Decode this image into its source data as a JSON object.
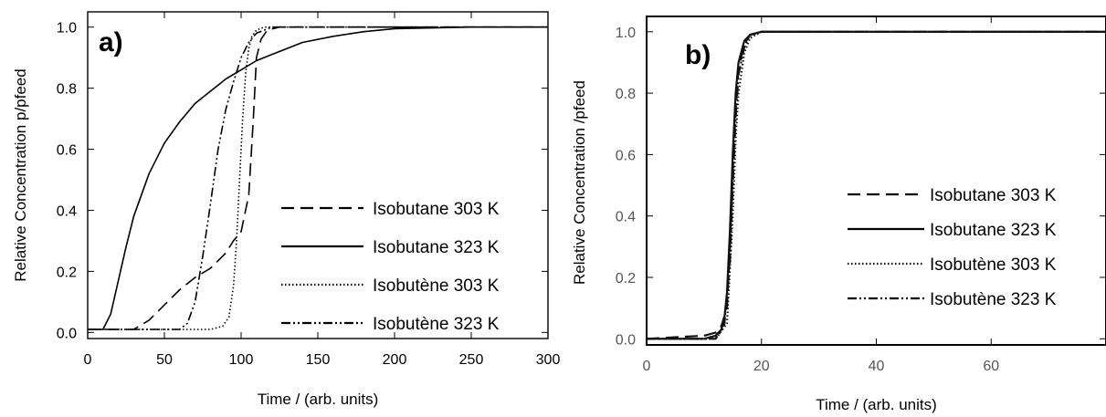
{
  "chart_data": [
    {
      "type": "line",
      "panel_label": "a)",
      "xlabel": "Time / (arb. units)",
      "ylabel": "Relative Concentration p/pfeed",
      "xlim": [
        0,
        300
      ],
      "ylim": [
        -0.02,
        1.05
      ],
      "x_ticks": [
        "0",
        "50",
        "100",
        "150",
        "200",
        "250",
        "300"
      ],
      "y_ticks": [
        "0.0",
        "0.2",
        "0.4",
        "0.6",
        "0.8",
        "1.0"
      ],
      "legend_position": "lower-right",
      "series": [
        {
          "name": "Isobutane 303 K",
          "style": "dashed",
          "x": [
            0,
            20,
            30,
            40,
            50,
            60,
            70,
            80,
            90,
            95,
            100,
            105,
            108,
            110,
            113,
            117,
            125,
            300
          ],
          "y": [
            0.01,
            0.01,
            0.01,
            0.04,
            0.09,
            0.14,
            0.18,
            0.21,
            0.26,
            0.3,
            0.33,
            0.45,
            0.7,
            0.9,
            0.96,
            0.99,
            1.0,
            1.0
          ]
        },
        {
          "name": "Isobutane 323 K",
          "style": "solid",
          "x": [
            0,
            10,
            15,
            20,
            25,
            30,
            40,
            50,
            60,
            70,
            80,
            90,
            100,
            110,
            120,
            140,
            160,
            180,
            200,
            250,
            300
          ],
          "y": [
            0.01,
            0.01,
            0.06,
            0.17,
            0.28,
            0.38,
            0.52,
            0.62,
            0.69,
            0.75,
            0.79,
            0.83,
            0.86,
            0.89,
            0.91,
            0.95,
            0.97,
            0.985,
            0.995,
            1.0,
            1.0
          ]
        },
        {
          "name": "Isobutène 303 K",
          "style": "dotted",
          "x": [
            0,
            80,
            88,
            92,
            95,
            97,
            99,
            101,
            103,
            105,
            107,
            110,
            115,
            300
          ],
          "y": [
            0.01,
            0.01,
            0.02,
            0.05,
            0.15,
            0.3,
            0.5,
            0.7,
            0.85,
            0.93,
            0.97,
            0.99,
            1.0,
            1.0
          ]
        },
        {
          "name": "Isobutène 323 K",
          "style": "dashdot",
          "x": [
            0,
            60,
            65,
            70,
            75,
            80,
            85,
            90,
            95,
            100,
            105,
            110,
            115,
            120,
            300
          ],
          "y": [
            0.01,
            0.01,
            0.03,
            0.1,
            0.25,
            0.42,
            0.6,
            0.73,
            0.82,
            0.9,
            0.95,
            0.98,
            0.99,
            1.0,
            1.0
          ]
        }
      ]
    },
    {
      "type": "line",
      "panel_label": "b)",
      "xlabel": "Time / (arb. units)",
      "ylabel": "Relative Concentration /pfeed",
      "xlim": [
        0,
        80
      ],
      "ylim": [
        -0.02,
        1.05
      ],
      "x_ticks": [
        "0",
        "20",
        "40",
        "60"
      ],
      "y_ticks": [
        "0.0",
        "0.2",
        "0.4",
        "0.6",
        "0.8",
        "1.0"
      ],
      "legend_position": "lower-right",
      "series": [
        {
          "name": "Isobutane 303 K",
          "style": "dashed",
          "x": [
            0,
            10,
            12,
            13,
            14,
            14.5,
            15,
            15.5,
            16,
            17,
            18,
            20,
            80
          ],
          "y": [
            0.0,
            0.01,
            0.02,
            0.04,
            0.1,
            0.3,
            0.55,
            0.75,
            0.88,
            0.96,
            0.99,
            1.0,
            1.0
          ]
        },
        {
          "name": "Isobutane 323 K",
          "style": "solid",
          "x": [
            0,
            10,
            12,
            13,
            13.5,
            14,
            14.5,
            15,
            15.5,
            16,
            17,
            18,
            20,
            80
          ],
          "y": [
            0.0,
            0.0,
            0.01,
            0.03,
            0.06,
            0.15,
            0.35,
            0.6,
            0.8,
            0.9,
            0.97,
            0.99,
            1.0,
            1.0
          ]
        },
        {
          "name": "Isobutène 303 K",
          "style": "dotted",
          "x": [
            0,
            12,
            14,
            15,
            15.5,
            16,
            17,
            18,
            20,
            80
          ],
          "y": [
            0.0,
            0.0,
            0.05,
            0.4,
            0.65,
            0.8,
            0.93,
            0.98,
            1.0,
            1.0
          ]
        },
        {
          "name": "Isobutène 323 K",
          "style": "dashdot",
          "x": [
            0,
            12,
            13.5,
            14.5,
            15,
            15.5,
            16,
            17,
            18,
            20,
            80
          ],
          "y": [
            0.0,
            0.0,
            0.04,
            0.25,
            0.5,
            0.72,
            0.86,
            0.95,
            0.99,
            1.0,
            1.0
          ]
        }
      ]
    }
  ]
}
